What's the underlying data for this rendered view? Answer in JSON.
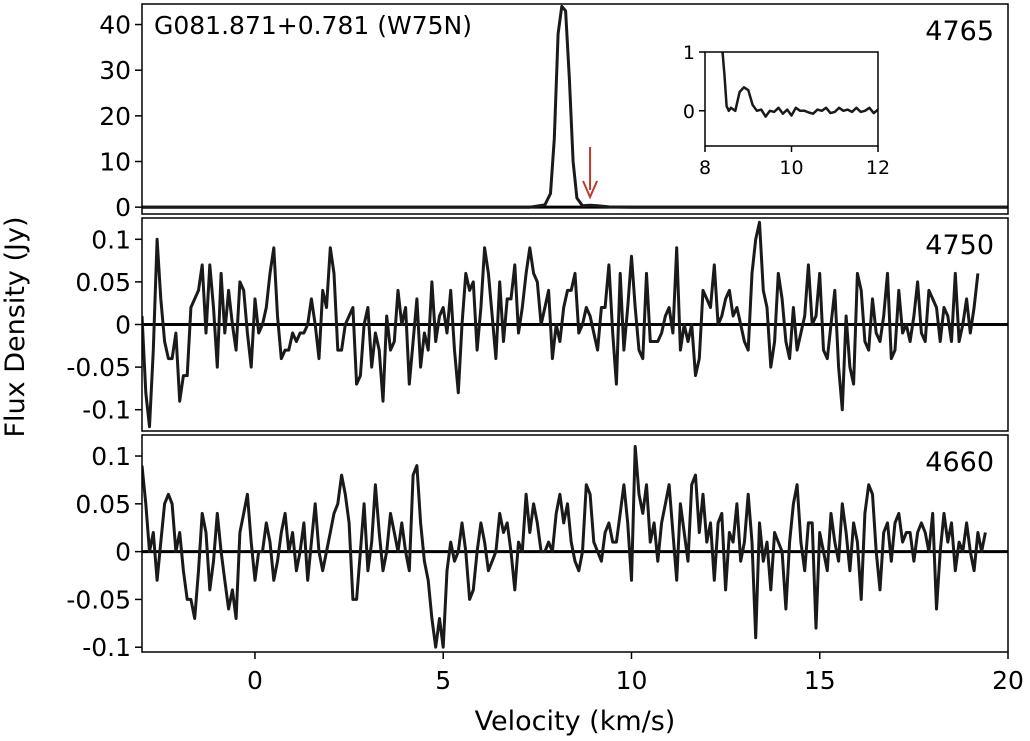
{
  "chart_data": [
    {
      "type": "line",
      "panel": "top",
      "title": "G081.871+0.781 (W75N)",
      "frequency_label": "4765",
      "xlim": [
        -3,
        20
      ],
      "ylim": [
        -1.5,
        44.5
      ],
      "yticks": [
        0,
        10,
        20,
        30,
        40
      ],
      "ytick_labels": [
        "0",
        "10",
        "20",
        "30",
        "40"
      ],
      "series": [
        {
          "x": [
            -3,
            7.3,
            7.7,
            7.85,
            7.95,
            8.05,
            8.15,
            8.25,
            8.35,
            8.45,
            8.55,
            8.7,
            8.9,
            9.1,
            9.4,
            10,
            20
          ],
          "y": [
            0,
            0,
            0.5,
            3,
            15,
            38,
            44,
            43,
            28,
            10,
            2,
            0.3,
            0.4,
            0.3,
            0.05,
            0,
            0
          ]
        }
      ],
      "annotation": {
        "type": "arrow",
        "x": 8.9,
        "color": "#c0392b"
      },
      "inset": {
        "xlim": [
          8,
          12
        ],
        "ylim": [
          -0.6,
          1
        ],
        "xticks": [
          8,
          10,
          12
        ],
        "xtick_labels": [
          "8",
          "10",
          "12"
        ],
        "yticks": [
          0,
          1
        ],
        "ytick_labels": [
          "0",
          "1"
        ],
        "x": [
          8.4,
          8.45,
          8.5,
          8.55,
          8.6,
          8.7,
          8.8,
          8.9,
          9.0,
          9.1,
          9.2,
          9.3,
          9.4,
          9.5,
          9.6,
          9.7,
          9.8,
          9.9,
          10.0,
          10.1,
          10.2,
          10.3,
          10.4,
          10.5,
          10.6,
          10.7,
          10.8,
          10.9,
          11.0,
          11.1,
          11.2,
          11.3,
          11.4,
          11.5,
          11.6,
          11.7,
          11.8,
          11.9,
          12.0
        ],
        "y": [
          1.05,
          0.6,
          0.08,
          0.0,
          0.05,
          0.0,
          0.32,
          0.4,
          0.35,
          0.1,
          0.0,
          0.02,
          -0.1,
          0.0,
          -0.02,
          0.05,
          -0.05,
          0.02,
          -0.08,
          0.05,
          0.0,
          0.0,
          -0.03,
          -0.05,
          0.02,
          0.0,
          0.05,
          -0.04,
          -0.02,
          0.05,
          0.0,
          0.02,
          -0.02,
          0.05,
          -0.02,
          0.0,
          0.05,
          -0.04,
          0.02
        ]
      }
    },
    {
      "type": "line",
      "panel": "middle",
      "frequency_label": "4750",
      "xlim": [
        -3,
        20
      ],
      "ylim": [
        -0.125,
        0.125
      ],
      "yticks": [
        -0.1,
        -0.05,
        0,
        0.05,
        0.1
      ],
      "ytick_labels": [
        "-0.1",
        "-0.05",
        "0",
        "0.05",
        "0.1"
      ],
      "x_start": -3,
      "x_step": 0.1,
      "y": [
        0.01,
        -0.08,
        -0.12,
        -0.03,
        0.1,
        0.03,
        -0.02,
        -0.04,
        -0.04,
        -0.01,
        -0.09,
        -0.06,
        -0.06,
        0.02,
        0.03,
        0.04,
        0.07,
        -0.01,
        0.07,
        0.02,
        -0.05,
        0.06,
        -0.01,
        0.04,
        0.0,
        -0.03,
        0.05,
        0.04,
        -0.01,
        -0.05,
        0.03,
        -0.01,
        0.0,
        0.02,
        0.06,
        0.09,
        0.01,
        -0.04,
        -0.03,
        -0.03,
        -0.01,
        -0.02,
        -0.01,
        -0.01,
        0.0,
        0.03,
        0.0,
        -0.04,
        0.04,
        0.02,
        0.09,
        0.06,
        -0.03,
        -0.03,
        0.0,
        0.01,
        0.02,
        -0.07,
        -0.06,
        0.0,
        0.02,
        -0.05,
        -0.01,
        -0.03,
        -0.09,
        0.01,
        -0.03,
        -0.02,
        0.04,
        0.0,
        0.02,
        -0.07,
        -0.02,
        0.03,
        -0.05,
        -0.01,
        -0.03,
        0.05,
        -0.02,
        0.01,
        0.02,
        -0.01,
        0.04,
        -0.03,
        -0.08,
        0.0,
        0.06,
        0.04,
        0.05,
        -0.03,
        0.02,
        0.09,
        0.06,
        0.01,
        -0.04,
        0.05,
        -0.02,
        0.03,
        0.03,
        0.07,
        -0.01,
        0.02,
        0.06,
        0.09,
        0.06,
        0.05,
        0.0,
        0.02,
        0.04,
        -0.04,
        0.0,
        -0.02,
        0.02,
        0.04,
        0.04,
        0.06,
        -0.01,
        0.0,
        0.02,
        0.01,
        -0.01,
        -0.03,
        0.02,
        0.02,
        0.07,
        -0.01,
        -0.07,
        0.06,
        -0.03,
        0.02,
        0.08,
        0.02,
        -0.03,
        -0.04,
        0.06,
        -0.02,
        -0.02,
        -0.02,
        -0.01,
        0.01,
        0.02,
        -0.01,
        0.09,
        -0.03,
        0.0,
        -0.02,
        0.0,
        -0.06,
        -0.04,
        0.04,
        0.03,
        0.02,
        0.07,
        0.0,
        0.01,
        0.03,
        0.04,
        0.01,
        0.02,
        0.0,
        -0.02,
        -0.03,
        0.06,
        0.1,
        0.12,
        0.04,
        0.02,
        -0.05,
        -0.02,
        0.06,
        0.03,
        -0.02,
        -0.04,
        0.02,
        -0.03,
        -0.01,
        0.01,
        0.07,
        0.0,
        0.01,
        0.06,
        -0.03,
        -0.04,
        0.0,
        0.04,
        -0.05,
        -0.1,
        0.01,
        -0.05,
        -0.07,
        0.06,
        0.04,
        -0.02,
        -0.03,
        0.03,
        -0.01,
        -0.02,
        0.01,
        0.06,
        -0.04,
        -0.03,
        0.04,
        -0.01,
        0.0,
        -0.02,
        0.01,
        0.05,
        -0.01,
        -0.02,
        0.04,
        0.03,
        0.02,
        -0.02,
        0.02,
        0.01,
        -0.02,
        0.06,
        -0.02,
        0.0,
        0.03,
        -0.01,
        0.02,
        0.06
      ]
    },
    {
      "type": "line",
      "panel": "bottom",
      "frequency_label": "4660",
      "xlim": [
        -3,
        20
      ],
      "ylim": [
        -0.105,
        0.122
      ],
      "yticks": [
        -0.1,
        -0.05,
        0,
        0.05,
        0.1
      ],
      "ytick_labels": [
        "-0.1",
        "-0.05",
        "0",
        "0.05",
        "0.1"
      ],
      "xticks": [
        0,
        5,
        10,
        15,
        20
      ],
      "xtick_labels": [
        "0",
        "5",
        "10",
        "15",
        "20"
      ],
      "x_start": -3,
      "x_step": 0.1,
      "y": [
        0.09,
        0.05,
        0.0,
        0.02,
        -0.03,
        0.01,
        0.05,
        0.06,
        0.05,
        0.0,
        0.02,
        -0.02,
        -0.05,
        -0.05,
        -0.07,
        -0.02,
        0.04,
        0.02,
        -0.04,
        -0.01,
        0.04,
        0.0,
        -0.03,
        -0.06,
        -0.04,
        -0.07,
        0.02,
        0.04,
        0.06,
        0.01,
        -0.03,
        0.0,
        0.0,
        0.03,
        0.01,
        -0.03,
        -0.01,
        0.02,
        0.04,
        0.0,
        0.02,
        -0.02,
        0.0,
        0.03,
        -0.03,
        0.01,
        0.05,
        0.0,
        -0.02,
        0.0,
        0.02,
        0.04,
        0.05,
        0.08,
        0.06,
        0.03,
        -0.05,
        -0.05,
        0.0,
        0.05,
        -0.02,
        0.01,
        0.07,
        0.02,
        -0.02,
        0.0,
        0.04,
        0.02,
        0.0,
        0.03,
        0.0,
        -0.02,
        0.08,
        0.09,
        0.03,
        -0.01,
        -0.03,
        -0.07,
        -0.1,
        -0.07,
        -0.1,
        -0.02,
        0.01,
        -0.01,
        0.0,
        0.03,
        0.0,
        -0.05,
        -0.04,
        0.0,
        0.03,
        0.01,
        -0.02,
        -0.01,
        0.0,
        0.04,
        0.02,
        0.03,
        0.0,
        -0.04,
        0.01,
        0.0,
        0.06,
        0.02,
        0.05,
        0.03,
        0.0,
        0.0,
        0.01,
        0.0,
        0.04,
        0.06,
        0.03,
        0.05,
        0.01,
        -0.01,
        -0.02,
        0.0,
        0.07,
        0.06,
        0.01,
        0.0,
        -0.01,
        0.02,
        0.03,
        0.01,
        0.01,
        0.04,
        0.07,
        0.03,
        -0.03,
        0.11,
        0.06,
        0.04,
        0.07,
        0.01,
        0.03,
        -0.01,
        0.03,
        0.05,
        0.07,
        0.02,
        -0.03,
        0.05,
        0.02,
        -0.01,
        0.07,
        0.08,
        0.02,
        0.06,
        0.01,
        0.03,
        -0.03,
        0.03,
        0.04,
        -0.04,
        0.02,
        0.01,
        0.05,
        -0.01,
        0.01,
        0.06,
        0.01,
        -0.09,
        0.03,
        -0.01,
        0.01,
        -0.04,
        0.02,
        0.01,
        0.0,
        -0.06,
        0.01,
        0.05,
        0.07,
        0.01,
        -0.02,
        0.03,
        0.03,
        -0.08,
        0.02,
        0.0,
        -0.02,
        0.04,
        0.01,
        -0.01,
        0.05,
        0.02,
        -0.02,
        0.03,
        0.01,
        -0.05,
        0.04,
        0.07,
        0.06,
        0.0,
        -0.04,
        0.02,
        0.03,
        -0.01,
        0.03,
        0.04,
        0.01,
        0.02,
        0.02,
        -0.01,
        0.02,
        0.03,
        0.02,
        0.0,
        0.04,
        -0.06,
        0.0,
        0.04,
        0.01,
        0.03,
        -0.02,
        0.01,
        0.0,
        0.03,
        0.0,
        -0.02,
        0.02,
        0.0,
        0.02
      ]
    }
  ],
  "xlabel": "Velocity (km/s)",
  "ylabel": "Flux Density (Jy)"
}
